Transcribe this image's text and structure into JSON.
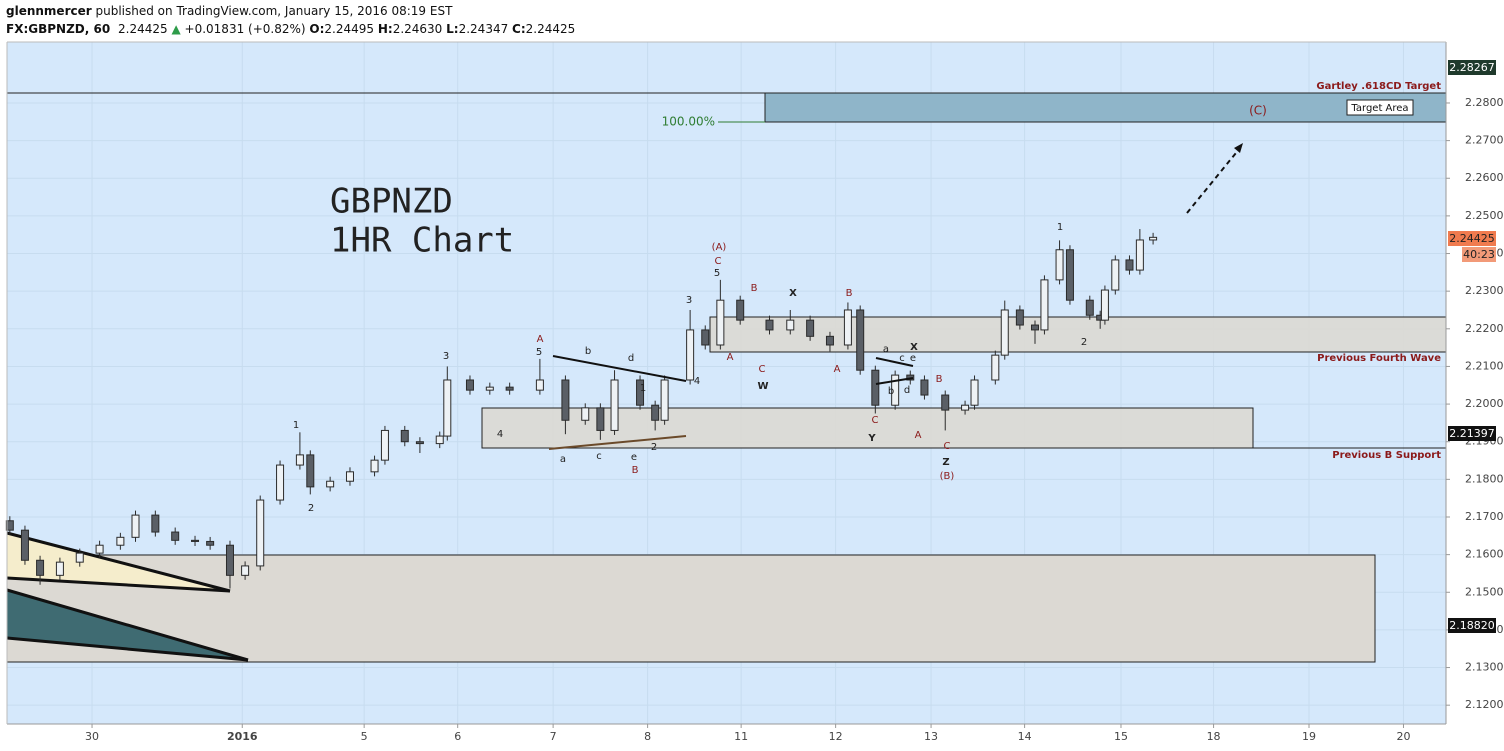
{
  "chart_data": {
    "type": "candlestick",
    "header": {
      "user": "glennmercer",
      "published": "published on TradingView.com, January 15, 2016 08:19 EST",
      "symbol": "FX:GBPNZD, 60",
      "last": "2.24425",
      "arrow": "▲",
      "change": "+0.01831 (+0.82%)",
      "o_label": "O:",
      "o": "2.24495",
      "h_label": "H:",
      "h": "2.24630",
      "l_label": "L:",
      "l": "2.24347",
      "c_label": "C:",
      "c": "2.24425"
    },
    "title": "GBPNZD",
    "subtitle": "1HR Chart",
    "up_color": "#eef2f5",
    "down_color": "#5a5f66",
    "wick_color": "#2b2b2b",
    "background": "#d5e8fb",
    "xlim": [
      -0.9,
      14.33
    ],
    "xticks": [
      {
        "value": 0,
        "label": "30"
      },
      {
        "value": 1.59,
        "label": "2016"
      },
      {
        "value": 2.88,
        "label": "5"
      },
      {
        "value": 3.87,
        "label": "6"
      },
      {
        "value": 4.88,
        "label": "7"
      },
      {
        "value": 5.88,
        "label": "8"
      },
      {
        "value": 6.87,
        "label": "11"
      },
      {
        "value": 7.87,
        "label": "12"
      },
      {
        "value": 8.88,
        "label": "13"
      },
      {
        "value": 9.87,
        "label": "14"
      },
      {
        "value": 10.89,
        "label": "15"
      },
      {
        "value": 11.87,
        "label": "18"
      },
      {
        "value": 12.88,
        "label": "19"
      },
      {
        "value": 13.88,
        "label": "20"
      }
    ],
    "ylim": [
      2.115,
      2.2962
    ],
    "yticks": [
      {
        "value": 2.12,
        "label": "2.12000"
      },
      {
        "value": 2.13,
        "label": "2.13000"
      },
      {
        "value": 2.14,
        "label": "2.14000"
      },
      {
        "value": 2.15,
        "label": "2.15000"
      },
      {
        "value": 2.16,
        "label": "2.16000"
      },
      {
        "value": 2.17,
        "label": "2.17000"
      },
      {
        "value": 2.18,
        "label": "2.18000"
      },
      {
        "value": 2.19,
        "label": "2.19000"
      },
      {
        "value": 2.2,
        "label": "2.20000"
      },
      {
        "value": 2.21,
        "label": "2.21000"
      },
      {
        "value": 2.22,
        "label": "2.22000"
      },
      {
        "value": 2.23,
        "label": "2.23000"
      },
      {
        "value": 2.24,
        "label": "2.24000"
      },
      {
        "value": 2.25,
        "label": "2.25000"
      },
      {
        "value": 2.26,
        "label": "2.26000"
      },
      {
        "value": 2.27,
        "label": "2.27000"
      },
      {
        "value": 2.28,
        "label": "2.28000"
      }
    ],
    "axis_tags": [
      "2.28267",
      "2.24425",
      "40:23",
      "2.21397",
      "2.18820"
    ],
    "x": [
      -0.87,
      -0.71,
      -0.55,
      -0.34,
      -0.13,
      0.08,
      0.3,
      0.46,
      0.67,
      0.88,
      1.09,
      1.25,
      1.46,
      1.62,
      1.78,
      1.99,
      2.2,
      2.31,
      2.52,
      2.73,
      2.99,
      3.1,
      3.31,
      3.47,
      3.68,
      3.76,
      4.0,
      4.21,
      4.42,
      4.74,
      5.01,
      5.22,
      5.38,
      5.53,
      5.8,
      5.96,
      6.06,
      6.33,
      6.49,
      6.65,
      6.86,
      7.17,
      7.39,
      7.6,
      7.81,
      8.0,
      8.13,
      8.29,
      8.5,
      8.66,
      8.81,
      9.03,
      9.24,
      9.34,
      9.56,
      9.66,
      9.82,
      9.98,
      10.08,
      10.24,
      10.35,
      10.56,
      10.67,
      10.72,
      10.83,
      10.98,
      11.09,
      11.23
    ],
    "open": [
      2.169,
      2.1665,
      2.1585,
      2.1545,
      2.158,
      2.1604,
      2.1625,
      2.1646,
      2.1705,
      2.166,
      2.1638,
      2.1635,
      2.1625,
      2.1545,
      2.157,
      2.1745,
      2.1838,
      2.1865,
      2.178,
      2.1795,
      2.182,
      2.1851,
      2.193,
      2.19,
      2.1895,
      2.1915,
      2.2064,
      2.2037,
      2.2045,
      2.2037,
      2.2064,
      2.1957,
      2.199,
      2.193,
      2.2064,
      2.1997,
      2.1957,
      2.2064,
      2.2197,
      2.2157,
      2.2276,
      2.2223,
      2.2197,
      2.2223,
      2.218,
      2.2157,
      2.225,
      2.209,
      2.1997,
      2.2077,
      2.2064,
      2.2024,
      2.1984,
      2.1997,
      2.2064,
      2.213,
      2.225,
      2.221,
      2.2197,
      2.233,
      2.241,
      2.2276,
      2.2236,
      2.2223,
      2.2303,
      2.2383,
      2.2356,
      2.2436
    ],
    "high": [
      2.1702,
      2.1677,
      2.1597,
      2.1592,
      2.1616,
      2.1637,
      2.1658,
      2.1717,
      2.1717,
      2.1672,
      2.165,
      2.1647,
      2.1637,
      2.1582,
      2.1757,
      2.185,
      2.1925,
      2.1877,
      2.1807,
      2.1832,
      2.1863,
      2.1942,
      2.1942,
      2.1912,
      2.1927,
      2.21,
      2.2076,
      2.2057,
      2.2057,
      2.212,
      2.2076,
      2.2002,
      2.2002,
      2.209,
      2.2076,
      2.2009,
      2.2076,
      2.225,
      2.2209,
      2.233,
      2.2288,
      2.2235,
      2.225,
      2.2235,
      2.2192,
      2.227,
      2.2262,
      2.2102,
      2.2089,
      2.2089,
      2.2076,
      2.2036,
      2.2009,
      2.2076,
      2.2142,
      2.2275,
      2.2262,
      2.2222,
      2.2342,
      2.2435,
      2.2422,
      2.2288,
      2.2248,
      2.2315,
      2.2395,
      2.2395,
      2.2465,
      2.2455
    ],
    "low": [
      2.1653,
      2.1573,
      2.152,
      2.1533,
      2.1568,
      2.1592,
      2.1613,
      2.1634,
      2.1648,
      2.1626,
      2.1623,
      2.1613,
      2.151,
      2.1533,
      2.1558,
      2.1733,
      2.1826,
      2.176,
      2.1768,
      2.1783,
      2.1808,
      2.1839,
      2.1888,
      2.187,
      2.1883,
      2.1903,
      2.2025,
      2.2025,
      2.2025,
      2.2025,
      2.192,
      2.1945,
      2.1905,
      2.1918,
      2.1985,
      2.193,
      2.1945,
      2.2052,
      2.2145,
      2.2145,
      2.2211,
      2.2185,
      2.2185,
      2.2168,
      2.214,
      2.2145,
      2.2078,
      2.1975,
      2.1985,
      2.2052,
      2.2012,
      2.193,
      2.1972,
      2.1985,
      2.2052,
      2.2118,
      2.2198,
      2.216,
      2.2185,
      2.2318,
      2.2264,
      2.2224,
      2.22,
      2.2211,
      2.2291,
      2.2344,
      2.2344,
      2.2424
    ],
    "close": [
      2.1665,
      2.1585,
      2.1545,
      2.158,
      2.1604,
      2.1625,
      2.1646,
      2.1705,
      2.166,
      2.1638,
      2.1635,
      2.1625,
      2.1545,
      2.157,
      2.1745,
      2.1838,
      2.1865,
      2.178,
      2.1795,
      2.182,
      2.1851,
      2.193,
      2.19,
      2.1895,
      2.1915,
      2.2064,
      2.2037,
      2.2045,
      2.2037,
      2.2064,
      2.1957,
      2.199,
      2.193,
      2.2064,
      2.1997,
      2.1957,
      2.2064,
      2.2197,
      2.2157,
      2.2276,
      2.2223,
      2.2197,
      2.2223,
      2.218,
      2.2157,
      2.225,
      2.209,
      2.1997,
      2.2077,
      2.2064,
      2.2024,
      2.1984,
      2.1997,
      2.2064,
      2.213,
      2.225,
      2.221,
      2.2197,
      2.233,
      2.241,
      2.2276,
      2.2236,
      2.2223,
      2.2303,
      2.2383,
      2.2356,
      2.2436,
      2.2443
    ],
    "drawings": {
      "gartley": "Gartley .618CD Target",
      "target_area": "Target Area",
      "fib": "100.00%",
      "wave_c": "(C)",
      "fourth_wave": "Previous Fourth Wave",
      "b_support": "Previous B Support"
    },
    "annotations": [
      "1",
      "2",
      "3",
      "4",
      "A",
      "5",
      "b",
      "d",
      "a",
      "c",
      "e",
      "B",
      "1",
      "2",
      "3",
      "4",
      "(A)",
      "C",
      "5",
      "A",
      "B",
      "C",
      "W",
      "X",
      "B",
      "A",
      "C",
      "Y",
      "a",
      "c",
      "e",
      "X",
      "b",
      "d",
      "B",
      "A",
      "C",
      "Z",
      "(B)",
      "1",
      "2"
    ],
    "annotation_colors": [
      "#222",
      "#222",
      "#222",
      "#222",
      "#8b1a1a",
      "#222",
      "#222",
      "#222",
      "#222",
      "#222",
      "#222",
      "#8b1a1a",
      "#222",
      "#222",
      "#222",
      "#222",
      "#8b1a1a",
      "#8b1a1a",
      "#222",
      "#8b1a1a",
      "#8b1a1a",
      "#8b1a1a",
      "#222",
      "#222",
      "#8b1a1a",
      "#8b1a1a",
      "#8b1a1a",
      "#222",
      "#222",
      "#222",
      "#222",
      "#222",
      "#222",
      "#222",
      "#8b1a1a",
      "#8b1a1a",
      "#8b1a1a",
      "#222",
      "#8b1a1a",
      "#222",
      "#222"
    ]
  }
}
